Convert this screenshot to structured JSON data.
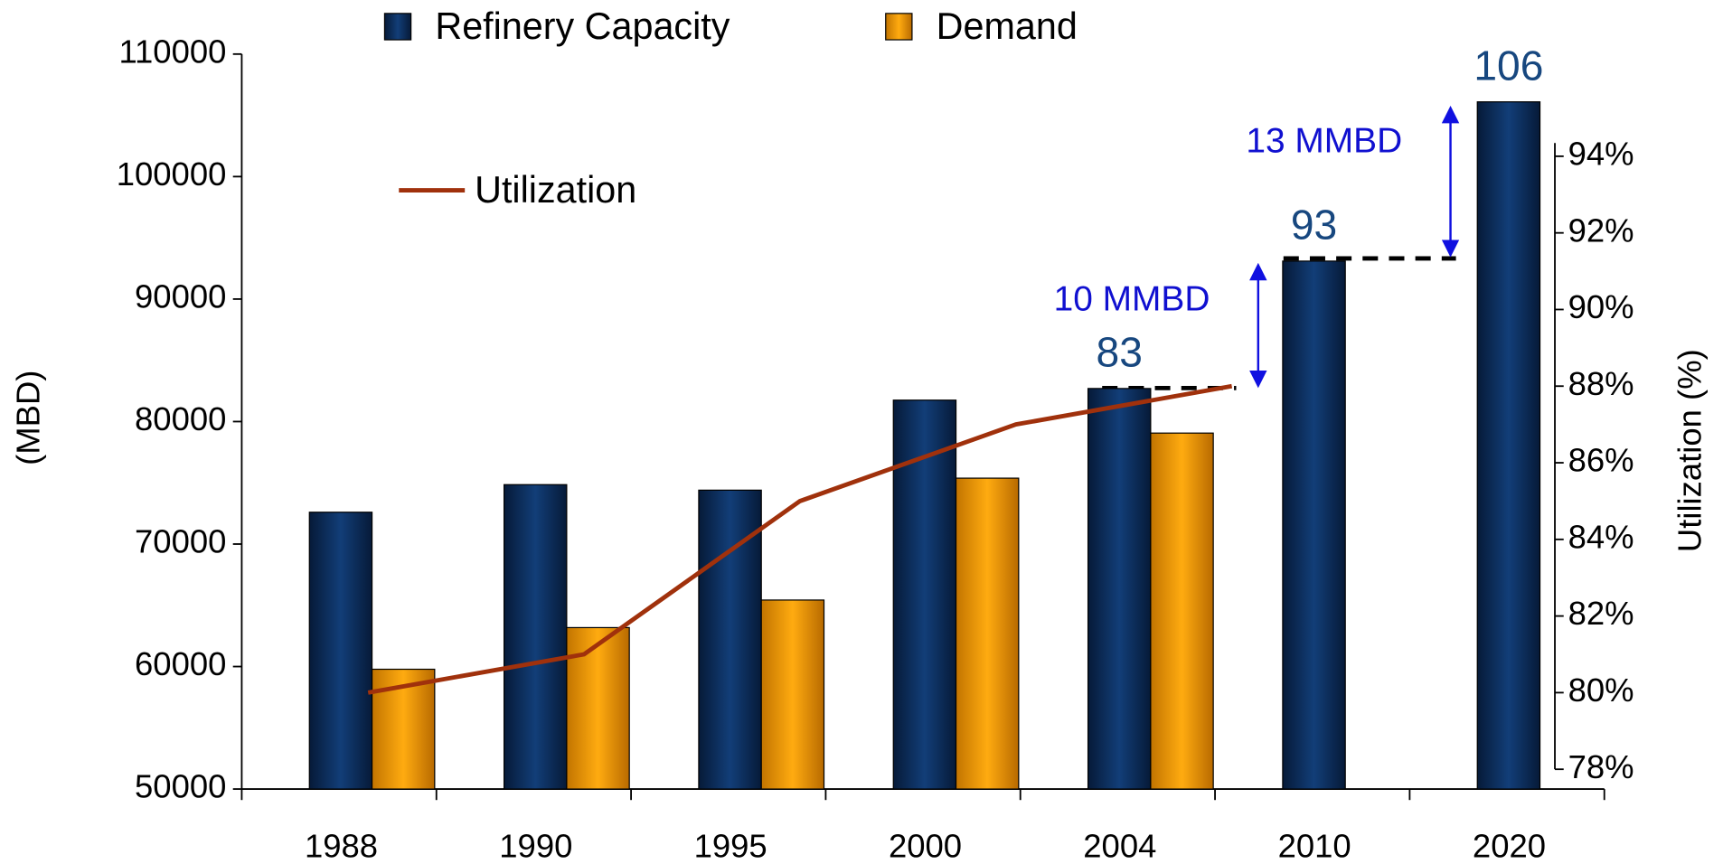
{
  "chart_data": {
    "type": "bar",
    "y_label": "(MBD)",
    "y2_label": "Utilization (%)",
    "categories": [
      "1988",
      "1990",
      "1995",
      "2000",
      "2004",
      "2010",
      "2020"
    ],
    "series": [
      {
        "name": "Refinery Capacity",
        "color": "#0d2e5c",
        "values": [
          72600,
          74850,
          74400,
          81750,
          82700,
          93100,
          106100
        ],
        "value_labels": [
          null,
          null,
          null,
          null,
          "83",
          "93",
          "106"
        ]
      },
      {
        "name": "Demand",
        "color": "#f59c00",
        "values": [
          59780,
          63180,
          65430,
          75380,
          79060,
          null,
          null
        ]
      },
      {
        "name": "Utilization",
        "type": "line",
        "axis": "y2",
        "color": "#a0310c",
        "values": [
          80,
          81,
          85,
          87,
          88,
          null,
          null
        ]
      }
    ],
    "ylim": [
      50000,
      110000
    ],
    "yticks": [
      50000,
      60000,
      70000,
      80000,
      90000,
      100000,
      110000
    ],
    "y2lim": [
      78,
      94
    ],
    "y2ticks": [
      {
        "value": 78,
        "label": "78%"
      },
      {
        "value": 80,
        "label": "80%"
      },
      {
        "value": 82,
        "label": "82%"
      },
      {
        "value": 84,
        "label": "84%"
      },
      {
        "value": 86,
        "label": "86%"
      },
      {
        "value": 88,
        "label": "88%"
      },
      {
        "value": 90,
        "label": "90%"
      },
      {
        "value": 92,
        "label": "92%"
      },
      {
        "value": 94,
        "label": "94%"
      }
    ],
    "annotations": [
      "10 MMBD",
      "13 MMBD"
    ]
  }
}
